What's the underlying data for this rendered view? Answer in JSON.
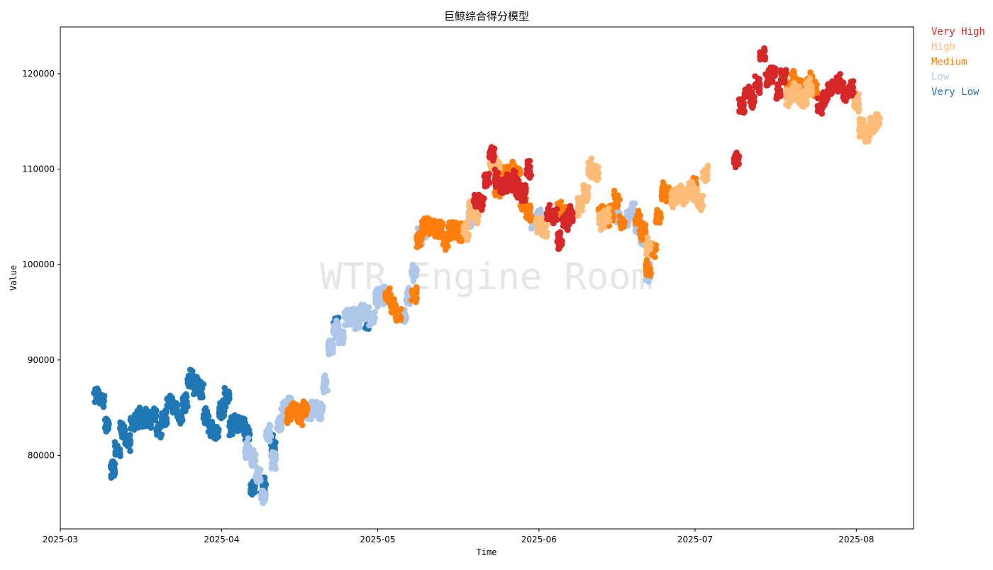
{
  "chart_data": {
    "type": "scatter",
    "title": "巨鲸综合得分模型",
    "xlabel": "Time",
    "ylabel": "Value",
    "watermark": "WTR Engine Room",
    "xlim": [
      "2025-03-01",
      "2025-08-12"
    ],
    "ylim": [
      72300,
      124900
    ],
    "x_ticks": [
      "2025-03",
      "2025-04",
      "2025-05",
      "2025-06",
      "2025-07",
      "2025-08"
    ],
    "y_ticks": [
      80000,
      90000,
      100000,
      110000,
      120000
    ],
    "grid": false,
    "legend_position": "outside top-right",
    "category_order": [
      "Very Low",
      "Low",
      "Medium",
      "High",
      "Very High"
    ],
    "series": [
      {
        "name": "Very High",
        "color": "#d62728",
        "points": [
          [
            "2025-05-20",
            107000
          ],
          [
            "2025-05-21",
            106500
          ],
          [
            "2025-05-22",
            108800
          ],
          [
            "2025-05-23",
            111500
          ],
          [
            "2025-05-24",
            109000
          ],
          [
            "2025-05-25",
            108200
          ],
          [
            "2025-05-26",
            108500
          ],
          [
            "2025-05-27",
            108700
          ],
          [
            "2025-05-28",
            108000
          ],
          [
            "2025-05-29",
            107400
          ],
          [
            "2025-05-30",
            109800
          ],
          [
            "2025-06-03",
            105500
          ],
          [
            "2025-06-04",
            105000
          ],
          [
            "2025-06-05",
            102500
          ],
          [
            "2025-06-06",
            104600
          ],
          [
            "2025-06-07",
            105200
          ],
          [
            "2025-07-09",
            111000
          ],
          [
            "2025-07-10",
            116500
          ],
          [
            "2025-07-11",
            118000
          ],
          [
            "2025-07-12",
            117200
          ],
          [
            "2025-07-13",
            118800
          ],
          [
            "2025-07-14",
            122000
          ],
          [
            "2025-07-15",
            119500
          ],
          [
            "2025-07-16",
            120000
          ],
          [
            "2025-07-17",
            118000
          ],
          [
            "2025-07-18",
            119800
          ],
          [
            "2025-07-25",
            116500
          ],
          [
            "2025-07-26",
            117500
          ],
          [
            "2025-07-27",
            118500
          ],
          [
            "2025-07-28",
            118800
          ],
          [
            "2025-07-29",
            119000
          ],
          [
            "2025-07-30",
            117800
          ],
          [
            "2025-07-31",
            118500
          ]
        ]
      },
      {
        "name": "High",
        "color": "#ffbb78",
        "points": [
          [
            "2025-05-18",
            103500
          ],
          [
            "2025-05-19",
            105800
          ],
          [
            "2025-05-20",
            105000
          ],
          [
            "2025-05-23",
            111000
          ],
          [
            "2025-05-24",
            110200
          ],
          [
            "2025-06-01",
            104200
          ],
          [
            "2025-06-02",
            103800
          ],
          [
            "2025-06-09",
            106200
          ],
          [
            "2025-06-10",
            107500
          ],
          [
            "2025-06-11",
            110000
          ],
          [
            "2025-06-12",
            109400
          ],
          [
            "2025-06-13",
            104500
          ],
          [
            "2025-06-14",
            105300
          ],
          [
            "2025-06-22",
            102000
          ],
          [
            "2025-06-27",
            106800
          ],
          [
            "2025-06-28",
            107500
          ],
          [
            "2025-06-29",
            107300
          ],
          [
            "2025-06-30",
            107800
          ],
          [
            "2025-07-01",
            107500
          ],
          [
            "2025-07-02",
            106500
          ],
          [
            "2025-07-03",
            109500
          ],
          [
            "2025-07-19",
            117600
          ],
          [
            "2025-07-20",
            118000
          ],
          [
            "2025-07-21",
            117700
          ],
          [
            "2025-07-22",
            117300
          ],
          [
            "2025-07-23",
            118500
          ],
          [
            "2025-08-01",
            117000
          ],
          [
            "2025-08-02",
            114300
          ],
          [
            "2025-08-03",
            113500
          ],
          [
            "2025-08-04",
            114500
          ],
          [
            "2025-08-05",
            115000
          ]
        ]
      },
      {
        "name": "Medium",
        "color": "#ff7f0e",
        "points": [
          [
            "2025-04-14",
            84200
          ],
          [
            "2025-04-15",
            84800
          ],
          [
            "2025-04-16",
            83900
          ],
          [
            "2025-04-17",
            85000
          ],
          [
            "2025-05-03",
            96500
          ],
          [
            "2025-05-04",
            95700
          ],
          [
            "2025-05-05",
            94500
          ],
          [
            "2025-05-08",
            97000
          ],
          [
            "2025-05-09",
            102800
          ],
          [
            "2025-05-10",
            103800
          ],
          [
            "2025-05-11",
            104100
          ],
          [
            "2025-05-12",
            103600
          ],
          [
            "2025-05-13",
            103900
          ],
          [
            "2025-05-14",
            102500
          ],
          [
            "2025-05-15",
            103700
          ],
          [
            "2025-05-16",
            103400
          ],
          [
            "2025-05-17",
            103300
          ],
          [
            "2025-05-24",
            108000
          ],
          [
            "2025-05-25",
            109700
          ],
          [
            "2025-05-26",
            109200
          ],
          [
            "2025-05-27",
            110000
          ],
          [
            "2025-05-28",
            109500
          ],
          [
            "2025-05-29",
            106700
          ],
          [
            "2025-05-30",
            105500
          ],
          [
            "2025-06-05",
            105800
          ],
          [
            "2025-06-06",
            105200
          ],
          [
            "2025-06-13",
            105500
          ],
          [
            "2025-06-14",
            105000
          ],
          [
            "2025-06-15",
            105500
          ],
          [
            "2025-06-16",
            106800
          ],
          [
            "2025-06-17",
            104300
          ],
          [
            "2025-06-20",
            104600
          ],
          [
            "2025-06-21",
            103500
          ],
          [
            "2025-06-22",
            99500
          ],
          [
            "2025-06-23",
            101500
          ],
          [
            "2025-06-24",
            105000
          ],
          [
            "2025-06-25",
            107700
          ],
          [
            "2025-06-26",
            107400
          ],
          [
            "2025-07-01",
            108000
          ],
          [
            "2025-07-19",
            118300
          ],
          [
            "2025-07-20",
            119400
          ],
          [
            "2025-07-21",
            118700
          ],
          [
            "2025-07-23",
            119300
          ],
          [
            "2025-07-24",
            118600
          ]
        ]
      },
      {
        "name": "Low",
        "color": "#aec7e8",
        "points": [
          [
            "2025-04-06",
            80800
          ],
          [
            "2025-04-07",
            79500
          ],
          [
            "2025-04-08",
            78000
          ],
          [
            "2025-04-09",
            76000
          ],
          [
            "2025-04-10",
            82500
          ],
          [
            "2025-04-11",
            79500
          ],
          [
            "2025-04-12",
            83500
          ],
          [
            "2025-04-13",
            84800
          ],
          [
            "2025-04-14",
            85200
          ],
          [
            "2025-04-16",
            84500
          ],
          [
            "2025-04-18",
            84700
          ],
          [
            "2025-04-19",
            84900
          ],
          [
            "2025-04-20",
            84600
          ],
          [
            "2025-04-21",
            87400
          ],
          [
            "2025-04-22",
            91500
          ],
          [
            "2025-04-23",
            93200
          ],
          [
            "2025-04-24",
            92500
          ],
          [
            "2025-04-25",
            94700
          ],
          [
            "2025-04-26",
            94500
          ],
          [
            "2025-04-27",
            94000
          ],
          [
            "2025-04-28",
            95000
          ],
          [
            "2025-04-29",
            94600
          ],
          [
            "2025-04-30",
            94300
          ],
          [
            "2025-05-01",
            96400
          ],
          [
            "2025-05-02",
            96900
          ],
          [
            "2025-05-06",
            94500
          ],
          [
            "2025-05-07",
            96600
          ],
          [
            "2025-05-08",
            99000
          ],
          [
            "2025-05-09",
            103000
          ],
          [
            "2025-05-10",
            103600
          ],
          [
            "2025-05-19",
            104800
          ],
          [
            "2025-05-31",
            104300
          ],
          [
            "2025-06-01",
            105000
          ],
          [
            "2025-06-16",
            105000
          ],
          [
            "2025-06-18",
            104700
          ],
          [
            "2025-06-19",
            105500
          ],
          [
            "2025-06-20",
            104000
          ],
          [
            "2025-06-21",
            103000
          ],
          [
            "2025-06-22",
            99200
          ]
        ]
      },
      {
        "name": "Very Low",
        "color": "#1f77b4",
        "points": [
          [
            "2025-03-08",
            86300
          ],
          [
            "2025-03-09",
            85800
          ],
          [
            "2025-03-10",
            83000
          ],
          [
            "2025-03-11",
            78500
          ],
          [
            "2025-03-12",
            80500
          ],
          [
            "2025-03-13",
            82500
          ],
          [
            "2025-03-14",
            81500
          ],
          [
            "2025-03-15",
            83500
          ],
          [
            "2025-03-16",
            84000
          ],
          [
            "2025-03-17",
            83800
          ],
          [
            "2025-03-18",
            83600
          ],
          [
            "2025-03-19",
            84200
          ],
          [
            "2025-03-20",
            82800
          ],
          [
            "2025-03-21",
            84100
          ],
          [
            "2025-03-22",
            85500
          ],
          [
            "2025-03-23",
            85200
          ],
          [
            "2025-03-24",
            84200
          ],
          [
            "2025-03-25",
            85500
          ],
          [
            "2025-03-26",
            88000
          ],
          [
            "2025-03-27",
            87300
          ],
          [
            "2025-03-28",
            86800
          ],
          [
            "2025-03-29",
            84200
          ],
          [
            "2025-03-30",
            82800
          ],
          [
            "2025-03-31",
            82300
          ],
          [
            "2025-04-01",
            84800
          ],
          [
            "2025-04-02",
            86000
          ],
          [
            "2025-04-03",
            83000
          ],
          [
            "2025-04-04",
            83500
          ],
          [
            "2025-04-05",
            83000
          ],
          [
            "2025-04-06",
            82400
          ],
          [
            "2025-04-07",
            76500
          ],
          [
            "2025-04-09",
            77000
          ],
          [
            "2025-04-11",
            81200
          ],
          [
            "2025-04-23",
            93500
          ],
          [
            "2025-04-29",
            94000
          ]
        ]
      }
    ]
  }
}
